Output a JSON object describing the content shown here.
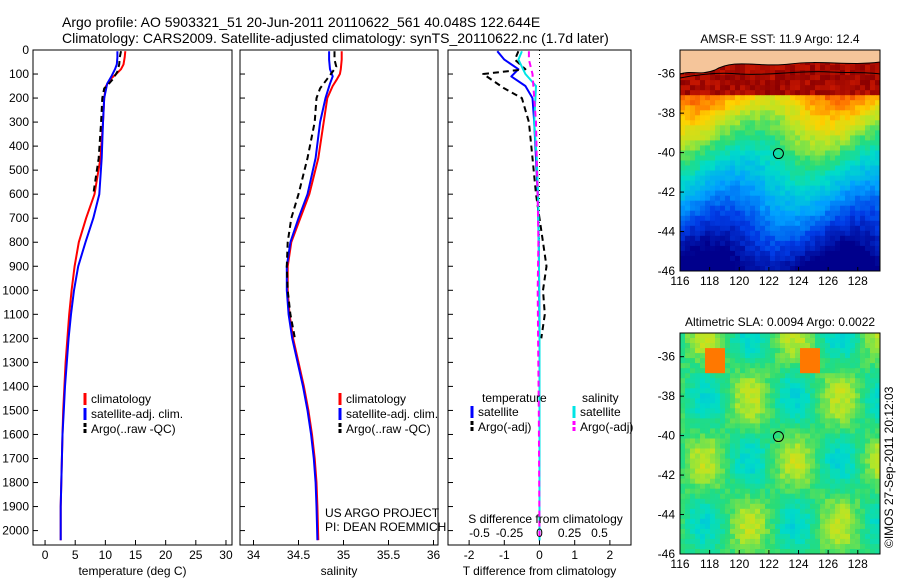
{
  "header": {
    "line1": "Argo profile: AO 5903321_51 20-Jun-2011 20110622_561 40.048S 122.644E",
    "line2": "Climatology: CARS2009. Satellite-adjusted climatology: synTS_20110622.nc (1.7d later)"
  },
  "colors": {
    "climatology": "#ff0000",
    "satellite": "#0000ff",
    "argo": "#000000",
    "sal_satellite": "#00e5e5",
    "sal_argo": "#ff00ff"
  },
  "chart_data": [
    {
      "id": "temperature",
      "type": "line",
      "xlabel": "temperature (deg C)",
      "ylabel": "",
      "xlim": [
        -2,
        31
      ],
      "ylim": [
        2060,
        0
      ],
      "xticks": [
        0,
        5,
        10,
        15,
        20,
        25,
        30
      ],
      "yticks": [
        0,
        100,
        200,
        300,
        400,
        500,
        600,
        700,
        800,
        900,
        1000,
        1100,
        1200,
        1300,
        1400,
        1500,
        1600,
        1700,
        1800,
        1900,
        2000
      ],
      "series": [
        {
          "name": "climatology",
          "style": "solid",
          "color": "#ff0000",
          "x": [
            13.3,
            13.2,
            13.0,
            12.6,
            11.8,
            10.9,
            10.1,
            9.8,
            9.6,
            9.2,
            8.2,
            6.8,
            5.6,
            4.9,
            4.4,
            4.0,
            3.7,
            3.4,
            3.2,
            3.0,
            2.9,
            2.8,
            2.7,
            2.6,
            2.6
          ],
          "y": [
            5,
            30,
            60,
            80,
            100,
            120,
            150,
            200,
            300,
            450,
            600,
            700,
            800,
            900,
            1000,
            1100,
            1200,
            1300,
            1400,
            1500,
            1600,
            1700,
            1800,
            1900,
            2040
          ]
        },
        {
          "name": "satellite-adj. clim.",
          "style": "solid",
          "color": "#0000ff",
          "x": [
            12.0,
            12.0,
            11.9,
            11.6,
            11.0,
            10.3,
            9.8,
            9.6,
            9.4,
            9.0,
            8.0,
            6.7,
            5.5,
            4.8,
            4.3,
            3.9,
            3.6,
            3.3,
            3.1,
            2.9,
            2.8,
            2.7,
            2.6,
            2.6
          ],
          "y": [
            5,
            30,
            60,
            80,
            110,
            140,
            200,
            300,
            450,
            600,
            700,
            800,
            900,
            1000,
            1100,
            1200,
            1300,
            1400,
            1500,
            1600,
            1700,
            1800,
            1900,
            2040
          ]
        },
        {
          "name": "Argo(..raw -QC)",
          "style": "dashed",
          "color": "#000000",
          "x": [
            12.6,
            12.4,
            12.3,
            12.0,
            11.3,
            10.6,
            10.2,
            9.8,
            9.5,
            9.3,
            8.9,
            8.0
          ],
          "y": [
            5,
            30,
            60,
            90,
            120,
            140,
            150,
            160,
            200,
            300,
            450,
            600
          ]
        }
      ],
      "legend": [
        "climatology",
        "satellite-adj. clim.",
        "Argo(..raw -QC)"
      ],
      "legend_position": "bottom-right"
    },
    {
      "id": "salinity",
      "type": "line",
      "xlabel": "salinity",
      "xlim": [
        33.85,
        36.05
      ],
      "ylim": [
        2060,
        0
      ],
      "xticks": [
        34,
        34.5,
        35,
        35.5,
        36
      ],
      "xticklabels": [
        "34",
        "34.5",
        "35",
        "35.5",
        "36"
      ],
      "series": [
        {
          "name": "climatology",
          "style": "solid",
          "color": "#ff0000",
          "x": [
            34.98,
            34.98,
            34.97,
            34.96,
            34.93,
            34.88,
            34.82,
            34.78,
            34.72,
            34.62,
            34.52,
            34.42,
            34.38,
            34.38,
            34.4,
            34.44,
            34.5,
            34.56,
            34.61,
            34.65,
            34.68,
            34.7,
            34.71,
            34.72
          ],
          "y": [
            5,
            40,
            80,
            100,
            120,
            150,
            200,
            300,
            450,
            600,
            700,
            800,
            900,
            1000,
            1100,
            1200,
            1300,
            1400,
            1500,
            1600,
            1700,
            1800,
            1900,
            2040
          ]
        },
        {
          "name": "satellite-adj. clim.",
          "style": "solid",
          "color": "#0000ff",
          "x": [
            34.84,
            34.84,
            34.85,
            34.88,
            34.85,
            34.8,
            34.74,
            34.69,
            34.6,
            34.5,
            34.41,
            34.37,
            34.37,
            34.39,
            34.43,
            34.49,
            34.55,
            34.6,
            34.64,
            34.67,
            34.69,
            34.7,
            34.71
          ],
          "y": [
            5,
            40,
            80,
            110,
            140,
            200,
            300,
            450,
            600,
            700,
            800,
            900,
            1000,
            1100,
            1200,
            1300,
            1400,
            1500,
            1600,
            1700,
            1800,
            1900,
            2040
          ]
        },
        {
          "name": "Argo(..raw -QC)",
          "style": "dashed",
          "color": "#000000",
          "x": [
            34.9,
            34.9,
            34.92,
            34.86,
            34.82,
            34.78,
            34.74,
            34.7,
            34.68,
            34.6,
            34.5,
            34.42,
            34.38,
            34.37,
            34.38,
            34.41,
            34.46
          ],
          "y": [
            5,
            40,
            70,
            100,
            120,
            140,
            160,
            200,
            300,
            450,
            600,
            700,
            800,
            900,
            1000,
            1100,
            1200
          ]
        }
      ],
      "legend": [
        "climatology",
        "satellite-adj. clim.",
        "Argo(..raw -QC)"
      ],
      "legend_position": "bottom-right",
      "annotation": [
        "US ARGO PROJECT",
        "PI: DEAN ROEMMICH"
      ]
    },
    {
      "id": "difference",
      "type": "line",
      "xlabel": "T difference from climatology",
      "xlabel_top": "S difference from climatology",
      "xlim": [
        -2.6,
        2.6
      ],
      "ylim": [
        2060,
        0
      ],
      "xticks": [
        -2,
        -1,
        0,
        1,
        2
      ],
      "sticks": [
        -0.5,
        -0.25,
        0,
        0.25,
        0.5
      ],
      "sticklabels": [
        "-0.5",
        "-0.25",
        "0",
        "0.25",
        "0.5"
      ],
      "zero_line": "dotted",
      "series": [
        {
          "name": "T satellite",
          "style": "solid",
          "color": "#0000ff",
          "x": [
            -1.2,
            -1.0,
            -0.6,
            -0.8,
            -0.4,
            -0.2,
            -0.15,
            -0.1,
            -0.05,
            -0.02,
            0,
            0
          ],
          "y": [
            5,
            40,
            80,
            110,
            150,
            200,
            300,
            450,
            600,
            800,
            1200,
            2040
          ]
        },
        {
          "name": "T Argo(-adj)",
          "style": "dashed",
          "color": "#000000",
          "x": [
            -0.6,
            -0.7,
            -0.4,
            -1.6,
            -1.0,
            -0.5,
            -0.3,
            -0.2,
            -0.1,
            0.1,
            0.2,
            0.1,
            0.15,
            0.05
          ],
          "y": [
            5,
            40,
            80,
            100,
            160,
            200,
            300,
            450,
            600,
            800,
            900,
            1000,
            1100,
            1200
          ]
        },
        {
          "name": "S satellite",
          "style": "solid",
          "color": "#00e5e5",
          "x": [
            -0.5,
            -0.6,
            -0.4,
            -0.1,
            -0.15,
            -0.08,
            -0.04,
            -0.02,
            0,
            0
          ],
          "y": [
            5,
            40,
            100,
            150,
            300,
            450,
            600,
            800,
            1200,
            2040
          ]
        },
        {
          "name": "S Argo(-adj)",
          "style": "dashed",
          "color": "#ff00ff",
          "x": [
            -0.3,
            -0.3,
            -0.2,
            -0.15,
            -0.1,
            -0.08,
            -0.05,
            -0.03,
            -0.05,
            -0.04,
            -0.02,
            0
          ],
          "y": [
            5,
            40,
            100,
            200,
            300,
            450,
            600,
            800,
            1000,
            1200,
            1500,
            2040
          ]
        }
      ],
      "legend_groups": [
        {
          "title": "temperature",
          "items": [
            "satellite",
            "Argo(-adj)"
          ]
        },
        {
          "title": "salinity",
          "items": [
            "satellite",
            "Argo(-adj)"
          ]
        }
      ]
    },
    {
      "id": "sst-map",
      "type": "heatmap",
      "title": "AMSR-E SST: 11.9  Argo: 12.4",
      "xlim": [
        116,
        129.5
      ],
      "ylim": [
        -46,
        -34.8
      ],
      "xticks": [
        116,
        118,
        120,
        122,
        124,
        126,
        128
      ],
      "yticks": [
        -36,
        -38,
        -40,
        -42,
        -44,
        -46
      ],
      "marker": {
        "lon": 122.644,
        "lat": -40.048
      }
    },
    {
      "id": "sla-map",
      "type": "heatmap",
      "title": "Altimetric SLA: 0.0094  Argo: 0.0022",
      "xlim": [
        116,
        129.5
      ],
      "ylim": [
        -46,
        -34.8
      ],
      "xticks": [
        116,
        118,
        120,
        122,
        124,
        126,
        128
      ],
      "yticks": [
        -36,
        -38,
        -40,
        -42,
        -44,
        -46
      ],
      "marker": {
        "lon": 122.644,
        "lat": -40.048
      }
    }
  ],
  "footer": {
    "credit": "©IMOS 27-Sep-2011 20:12:03"
  }
}
